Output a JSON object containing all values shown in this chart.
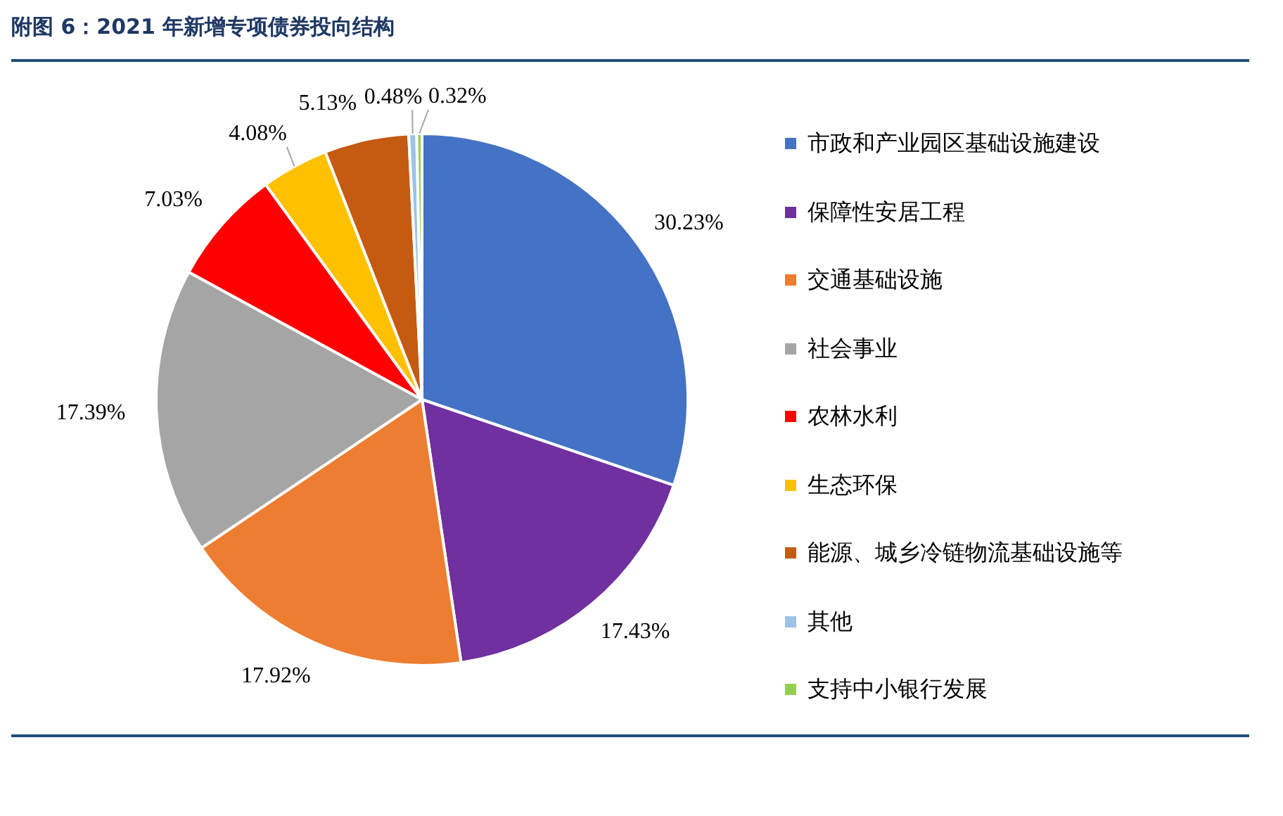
{
  "chart_data": {
    "type": "pie",
    "title": "附图 6：2021 年新增专项债券投向结构",
    "categories": [
      "市政和产业园区基础设施建设",
      "保障性安居工程",
      "交通基础设施",
      "社会事业",
      "农林水利",
      "生态环保",
      "能源、城乡冷链物流基础设施等",
      "其他",
      "支持中小银行发展"
    ],
    "values": [
      30.23,
      17.43,
      17.92,
      17.39,
      7.03,
      4.08,
      5.13,
      0.48,
      0.32
    ],
    "colors": [
      "#4472c4",
      "#7030a0",
      "#ed7d31",
      "#a5a5a5",
      "#ff0000",
      "#ffc000",
      "#c55a11",
      "#9dc3e6",
      "#92d050"
    ],
    "value_labels": [
      "30.23%",
      "17.43%",
      "17.92%",
      "17.39%",
      "7.03%",
      "4.08%",
      "5.13%",
      "0.48%",
      "0.32%"
    ],
    "legend": "right"
  }
}
